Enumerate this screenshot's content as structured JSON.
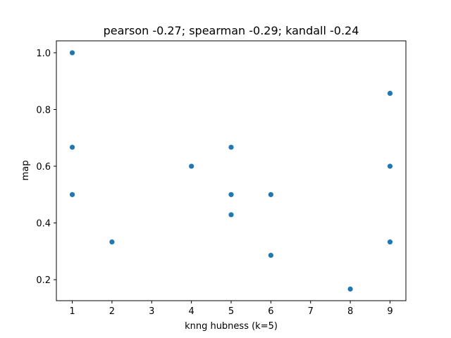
{
  "chart_data": {
    "type": "scatter",
    "title": "pearson -0.27; spearman -0.29; kandall -0.24",
    "xlabel": "knng hubness (k=5)",
    "ylabel": "map",
    "xlim": [
      0.6,
      9.4
    ],
    "ylim": [
      0.126,
      1.042
    ],
    "xticks": [
      1,
      2,
      3,
      4,
      5,
      6,
      7,
      8,
      9
    ],
    "yticks": [
      0.2,
      0.4,
      0.6,
      0.8,
      1.0
    ],
    "ytick_labels": [
      "0.2",
      "0.4",
      "0.6",
      "0.8",
      "1.0"
    ],
    "marker_color": "#1f77b4",
    "grid": false,
    "points": [
      {
        "x": 1,
        "y": 1.0
      },
      {
        "x": 1,
        "y": 0.667
      },
      {
        "x": 1,
        "y": 0.5
      },
      {
        "x": 2,
        "y": 0.333
      },
      {
        "x": 4,
        "y": 0.6
      },
      {
        "x": 5,
        "y": 0.667
      },
      {
        "x": 5,
        "y": 0.5
      },
      {
        "x": 5,
        "y": 0.429
      },
      {
        "x": 6,
        "y": 0.5
      },
      {
        "x": 6,
        "y": 0.286
      },
      {
        "x": 8,
        "y": 0.167
      },
      {
        "x": 9,
        "y": 0.857
      },
      {
        "x": 9,
        "y": 0.6
      },
      {
        "x": 9,
        "y": 0.333
      }
    ]
  }
}
